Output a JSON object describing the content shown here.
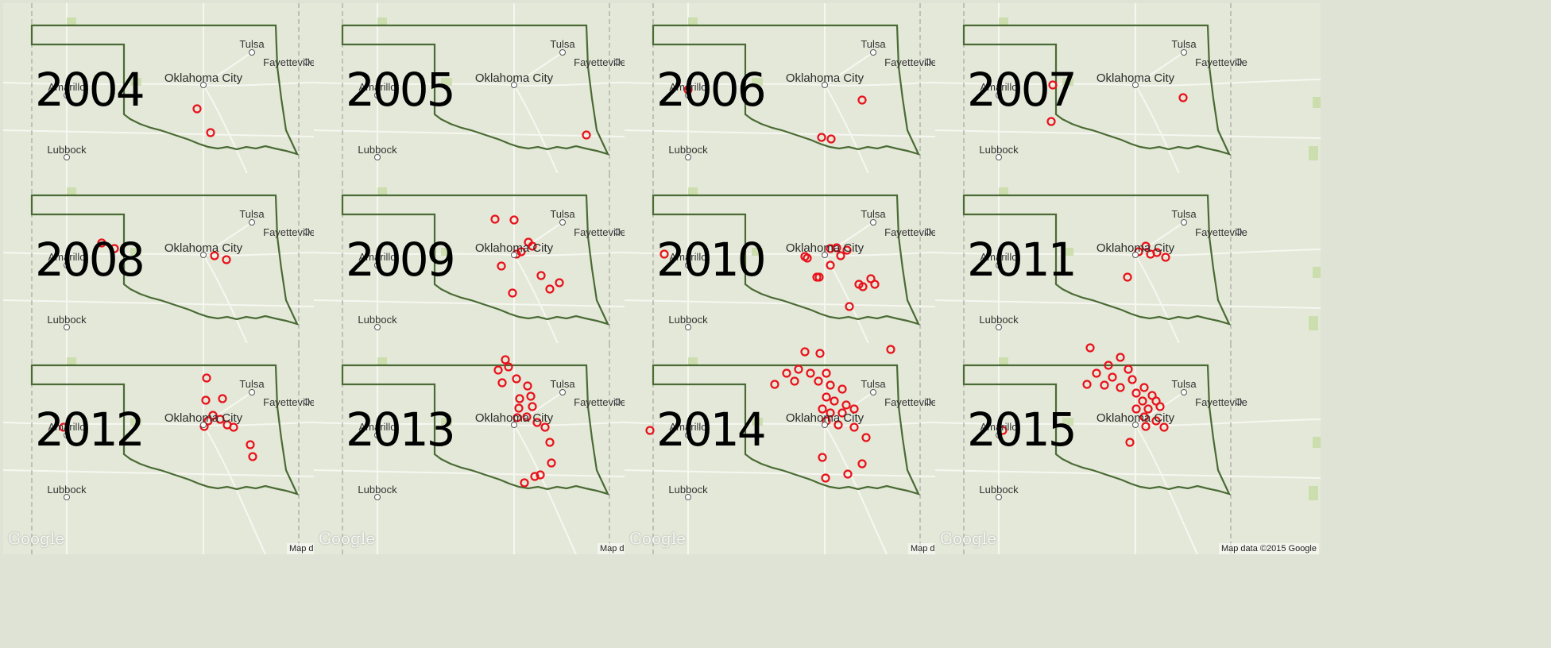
{
  "map": {
    "cities": {
      "tulsa": "Tulsa",
      "fayetteville": "Fayetteville",
      "okc": "Oklahoma City",
      "amarillo": "Amarillo",
      "lubbock": "Lubbock"
    },
    "attribution": "Map data ©2015 Google",
    "logo": "Google",
    "colors": {
      "marker": "#e8111b",
      "border": "#4a6b35",
      "land": "#e4e8d8"
    }
  },
  "panels": [
    {
      "year": "2004",
      "quakes": [
        [
          248,
          137
        ],
        [
          265,
          167
        ]
      ]
    },
    {
      "year": "2005",
      "quakes": [
        [
          738,
          170
        ]
      ]
    },
    {
      "year": "2006",
      "quakes": [
        [
          866,
          113
        ],
        [
          1085,
          126
        ],
        [
          1034,
          173
        ],
        [
          1046,
          175
        ]
      ]
    },
    {
      "year": "2007",
      "quakes": [
        [
          1325,
          107
        ],
        [
          1489,
          123
        ],
        [
          1323,
          153
        ]
      ]
    },
    {
      "year": "2008",
      "quakes": [
        [
          128,
          306
        ],
        [
          144,
          313
        ],
        [
          270,
          322
        ],
        [
          285,
          327
        ]
      ]
    },
    {
      "year": "2009",
      "quakes": [
        [
          623,
          276
        ],
        [
          647,
          277
        ],
        [
          665,
          305
        ],
        [
          670,
          310
        ],
        [
          656,
          317
        ],
        [
          650,
          320
        ],
        [
          631,
          335
        ],
        [
          681,
          347
        ],
        [
          704,
          356
        ],
        [
          692,
          364
        ],
        [
          645,
          369
        ]
      ]
    },
    {
      "year": "2010",
      "quakes": [
        [
          836,
          320
        ],
        [
          1013,
          323
        ],
        [
          1016,
          325
        ],
        [
          1045,
          313
        ],
        [
          1053,
          312
        ],
        [
          1066,
          315
        ],
        [
          1058,
          322
        ],
        [
          1045,
          334
        ],
        [
          1028,
          349
        ],
        [
          1031,
          349
        ],
        [
          1081,
          358
        ],
        [
          1086,
          361
        ],
        [
          1096,
          351
        ],
        [
          1101,
          358
        ],
        [
          1069,
          386
        ]
      ]
    },
    {
      "year": "2011",
      "quakes": [
        [
          1442,
          310
        ],
        [
          1433,
          317
        ],
        [
          1448,
          320
        ],
        [
          1456,
          318
        ],
        [
          1467,
          324
        ],
        [
          1419,
          349
        ]
      ]
    },
    {
      "year": "2012",
      "quakes": [
        [
          260,
          476
        ],
        [
          259,
          504
        ],
        [
          280,
          502
        ],
        [
          268,
          523
        ],
        [
          262,
          530
        ],
        [
          257,
          537
        ],
        [
          277,
          528
        ],
        [
          286,
          535
        ],
        [
          294,
          538
        ],
        [
          80,
          538
        ],
        [
          315,
          560
        ],
        [
          318,
          575
        ]
      ]
    },
    {
      "year": "2013",
      "quakes": [
        [
          636,
          453
        ],
        [
          627,
          466
        ],
        [
          640,
          462
        ],
        [
          632,
          482
        ],
        [
          650,
          477
        ],
        [
          664,
          486
        ],
        [
          654,
          502
        ],
        [
          668,
          499
        ],
        [
          653,
          514
        ],
        [
          670,
          512
        ],
        [
          651,
          526
        ],
        [
          663,
          525
        ],
        [
          676,
          532
        ],
        [
          686,
          538
        ],
        [
          692,
          557
        ],
        [
          694,
          583
        ],
        [
          680,
          598
        ],
        [
          673,
          600
        ],
        [
          660,
          608
        ]
      ]
    },
    {
      "year": "2014",
      "quakes": [
        [
          1121,
          440
        ],
        [
          1013,
          443
        ],
        [
          1032,
          445
        ],
        [
          990,
          470
        ],
        [
          1005,
          465
        ],
        [
          1020,
          470
        ],
        [
          1040,
          470
        ],
        [
          1000,
          480
        ],
        [
          1030,
          480
        ],
        [
          975,
          484
        ],
        [
          1045,
          485
        ],
        [
          1060,
          490
        ],
        [
          1040,
          500
        ],
        [
          1050,
          505
        ],
        [
          1065,
          510
        ],
        [
          1035,
          515
        ],
        [
          1045,
          520
        ],
        [
          1060,
          520
        ],
        [
          1075,
          515
        ],
        [
          1040,
          530
        ],
        [
          1055,
          535
        ],
        [
          1075,
          538
        ],
        [
          1090,
          551
        ],
        [
          818,
          542
        ],
        [
          1035,
          576
        ],
        [
          1085,
          584
        ],
        [
          1067,
          597
        ],
        [
          1039,
          602
        ]
      ]
    },
    {
      "year": "2015",
      "quakes": [
        [
          1372,
          438
        ],
        [
          1410,
          450
        ],
        [
          1395,
          460
        ],
        [
          1420,
          465
        ],
        [
          1380,
          470
        ],
        [
          1400,
          475
        ],
        [
          1425,
          478
        ],
        [
          1368,
          484
        ],
        [
          1390,
          485
        ],
        [
          1410,
          488
        ],
        [
          1440,
          488
        ],
        [
          1430,
          495
        ],
        [
          1450,
          498
        ],
        [
          1438,
          505
        ],
        [
          1455,
          505
        ],
        [
          1430,
          515
        ],
        [
          1445,
          515
        ],
        [
          1460,
          512
        ],
        [
          1440,
          525
        ],
        [
          1455,
          530
        ],
        [
          1465,
          538
        ],
        [
          1442,
          537
        ],
        [
          1422,
          557
        ],
        [
          1262,
          542
        ]
      ]
    }
  ]
}
